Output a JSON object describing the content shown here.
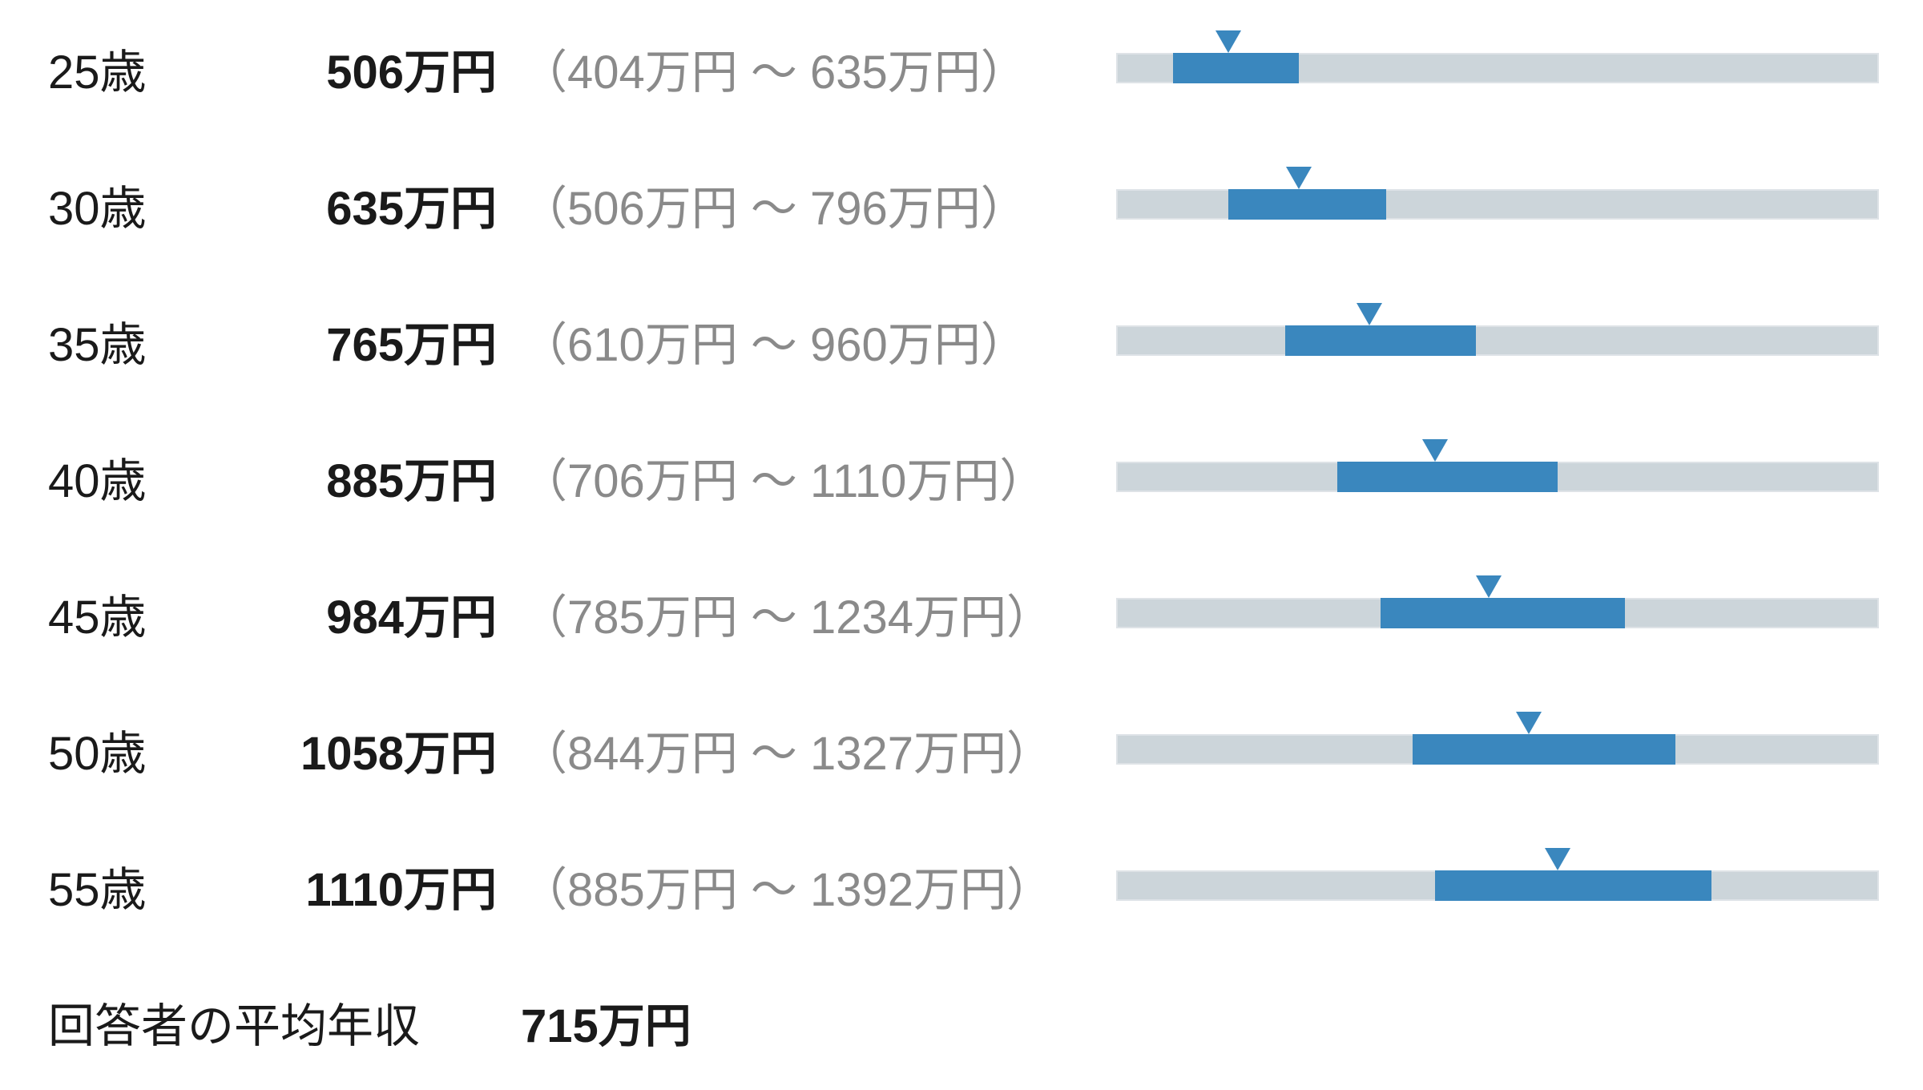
{
  "page": {
    "background": "#ffffff"
  },
  "chart_data": {
    "type": "bar",
    "subtype": "range-bar-with-average-marker",
    "unit": "万円",
    "scale": {
      "min": 300,
      "max": 1700
    },
    "grid": false,
    "legend": false,
    "colors": {
      "text": "#1a1a1a",
      "muted_text": "#8a8a8a",
      "track": "#ccd5da",
      "accent": "#3a87be"
    },
    "rows": [
      {
        "age_label": "25歳",
        "average": 506,
        "low": 404,
        "high": 635,
        "average_label": "506万円",
        "range_label": "（404万円 ～ 635万円）"
      },
      {
        "age_label": "30歳",
        "average": 635,
        "low": 506,
        "high": 796,
        "average_label": "635万円",
        "range_label": "（506万円 ～ 796万円）"
      },
      {
        "age_label": "35歳",
        "average": 765,
        "low": 610,
        "high": 960,
        "average_label": "765万円",
        "range_label": "（610万円 ～ 960万円）"
      },
      {
        "age_label": "40歳",
        "average": 885,
        "low": 706,
        "high": 1110,
        "average_label": "885万円",
        "range_label": "（706万円 ～ 1110万円）"
      },
      {
        "age_label": "45歳",
        "average": 984,
        "low": 785,
        "high": 1234,
        "average_label": "984万円",
        "range_label": "（785万円 ～ 1234万円）"
      },
      {
        "age_label": "50歳",
        "average": 1058,
        "low": 844,
        "high": 1327,
        "average_label": "1058万円",
        "range_label": "（844万円 ～ 1327万円）"
      },
      {
        "age_label": "55歳",
        "average": 1110,
        "low": 885,
        "high": 1392,
        "average_label": "1110万円",
        "range_label": "（885万円 ～ 1392万円）"
      }
    ],
    "footer": {
      "label": "回答者の平均年収",
      "value": 715,
      "value_label": "715万円"
    }
  }
}
